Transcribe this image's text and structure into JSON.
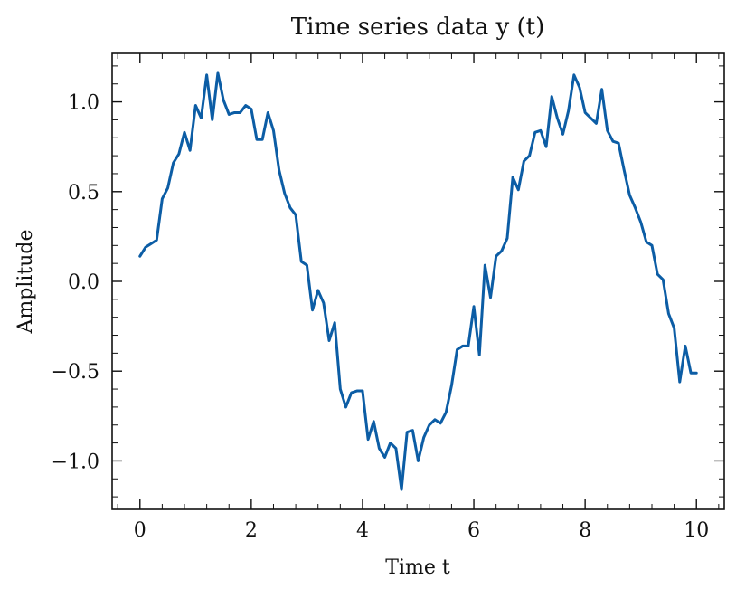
{
  "chart_data": {
    "type": "line",
    "title": "Time series data y (t)",
    "xlabel": "Time t",
    "ylabel": "Amplitude",
    "xlim": [
      -0.5,
      10.5
    ],
    "ylim": [
      -1.27,
      1.27
    ],
    "xticks": [
      0,
      2,
      4,
      6,
      8,
      10
    ],
    "xtick_labels": [
      "0",
      "2",
      "4",
      "6",
      "8",
      "10"
    ],
    "yticks": [
      1.0,
      0.5,
      0.0,
      -0.5,
      -1.0
    ],
    "ytick_labels": [
      "1.0",
      "0.5",
      "0.0",
      "−0.5",
      "−1.0"
    ],
    "x_minor_step": 0.4,
    "y_minor_step": 0.1,
    "grid": false,
    "line_color": "#0C5DA5",
    "series": [
      {
        "x": [
          0.0,
          0.1,
          0.2,
          0.3,
          0.4,
          0.5,
          0.6,
          0.7,
          0.8,
          0.9,
          1.0,
          1.1,
          1.2,
          1.3,
          1.4,
          1.5,
          1.6,
          1.7,
          1.8,
          1.9,
          2.0,
          2.1,
          2.2,
          2.3,
          2.4,
          2.5,
          2.6,
          2.7,
          2.8,
          2.9,
          3.0,
          3.1,
          3.2,
          3.3,
          3.4,
          3.5,
          3.6,
          3.7,
          3.8,
          3.9,
          4.0,
          4.1,
          4.2,
          4.3,
          4.4,
          4.5,
          4.6,
          4.7,
          4.8,
          4.9,
          5.0,
          5.1,
          5.2,
          5.3,
          5.4,
          5.5,
          5.6,
          5.7,
          5.8,
          5.9,
          6.0,
          6.1,
          6.2,
          6.3,
          6.4,
          6.5,
          6.6,
          6.7,
          6.8,
          6.9,
          7.0,
          7.1,
          7.2,
          7.3,
          7.4,
          7.5,
          7.6,
          7.7,
          7.8,
          7.9,
          8.0,
          8.1,
          8.2,
          8.3,
          8.4,
          8.5,
          8.6,
          8.7,
          8.8,
          8.9,
          9.0,
          9.1,
          9.2,
          9.3,
          9.4,
          9.5,
          9.6,
          9.7,
          9.8,
          9.9,
          10.0
        ],
        "values": [
          0.14,
          0.19,
          0.21,
          0.23,
          0.46,
          0.52,
          0.66,
          0.71,
          0.83,
          0.73,
          0.98,
          0.91,
          1.15,
          0.9,
          1.16,
          1.01,
          0.93,
          0.94,
          0.94,
          0.98,
          0.96,
          0.79,
          0.79,
          0.94,
          0.84,
          0.62,
          0.49,
          0.41,
          0.37,
          0.11,
          0.09,
          -0.16,
          -0.05,
          -0.12,
          -0.33,
          -0.23,
          -0.6,
          -0.7,
          -0.62,
          -0.61,
          -0.61,
          -0.88,
          -0.78,
          -0.93,
          -0.98,
          -0.9,
          -0.93,
          -1.16,
          -0.84,
          -0.83,
          -1.0,
          -0.87,
          -0.8,
          -0.77,
          -0.79,
          -0.73,
          -0.58,
          -0.38,
          -0.36,
          -0.36,
          -0.14,
          -0.41,
          0.09,
          -0.09,
          0.14,
          0.17,
          0.24,
          0.58,
          0.51,
          0.67,
          0.7,
          0.83,
          0.84,
          0.75,
          1.03,
          0.91,
          0.82,
          0.95,
          1.15,
          1.08,
          0.94,
          0.91,
          0.88,
          1.07,
          0.84,
          0.78,
          0.77,
          0.62,
          0.48,
          0.41,
          0.33,
          0.22,
          0.2,
          0.04,
          0.01,
          -0.18,
          -0.26,
          -0.56,
          -0.36,
          -0.51,
          -0.51
        ]
      }
    ]
  }
}
